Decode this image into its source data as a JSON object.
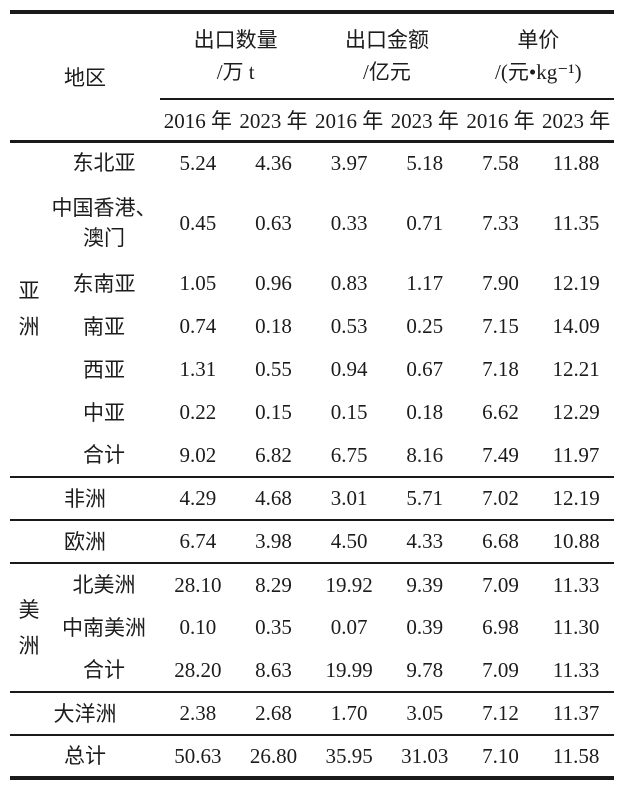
{
  "table": {
    "title_column": "地区",
    "column_groups": [
      {
        "title": "出口数量",
        "unit": "/万 t"
      },
      {
        "title": "出口金额",
        "unit": "/亿元"
      },
      {
        "title": "单价",
        "unit": "/(元•kg⁻¹)"
      }
    ],
    "year_headers": [
      "2016 年",
      "2023 年",
      "2016 年",
      "2023 年",
      "2016 年",
      "2023 年"
    ],
    "sections": [
      {
        "group": "亚洲",
        "group_chars": [
          "亚",
          "洲"
        ],
        "rows": [
          {
            "region_lines": [
              "东北亚"
            ],
            "values": [
              "5.24",
              "4.36",
              "3.97",
              "5.18",
              "7.58",
              "11.88"
            ]
          },
          {
            "region_lines": [
              "中国香港、",
              "澳门"
            ],
            "tall": true,
            "values": [
              "0.45",
              "0.63",
              "0.33",
              "0.71",
              "7.33",
              "11.35"
            ]
          },
          {
            "region_lines": [
              "东南亚"
            ],
            "values": [
              "1.05",
              "0.96",
              "0.83",
              "1.17",
              "7.90",
              "12.19"
            ]
          },
          {
            "region_lines": [
              "南亚"
            ],
            "values": [
              "0.74",
              "0.18",
              "0.53",
              "0.25",
              "7.15",
              "14.09"
            ]
          },
          {
            "region_lines": [
              "西亚"
            ],
            "values": [
              "1.31",
              "0.55",
              "0.94",
              "0.67",
              "7.18",
              "12.21"
            ]
          },
          {
            "region_lines": [
              "中亚"
            ],
            "values": [
              "0.22",
              "0.15",
              "0.15",
              "0.18",
              "6.62",
              "12.29"
            ]
          },
          {
            "region_lines": [
              "合计"
            ],
            "values": [
              "9.02",
              "6.82",
              "6.75",
              "8.16",
              "7.49",
              "11.97"
            ]
          }
        ]
      },
      {
        "group": null,
        "rows": [
          {
            "region_lines": [
              "非洲"
            ],
            "values": [
              "4.29",
              "4.68",
              "3.01",
              "5.71",
              "7.02",
              "12.19"
            ]
          }
        ]
      },
      {
        "group": null,
        "rows": [
          {
            "region_lines": [
              "欧洲"
            ],
            "values": [
              "6.74",
              "3.98",
              "4.50",
              "4.33",
              "6.68",
              "10.88"
            ]
          }
        ]
      },
      {
        "group": "美洲",
        "group_chars": [
          "美",
          "洲"
        ],
        "rows": [
          {
            "region_lines": [
              "北美洲"
            ],
            "values": [
              "28.10",
              "8.29",
              "19.92",
              "9.39",
              "7.09",
              "11.33"
            ]
          },
          {
            "region_lines": [
              "中南美洲"
            ],
            "values": [
              "0.10",
              "0.35",
              "0.07",
              "0.39",
              "6.98",
              "11.30"
            ]
          },
          {
            "region_lines": [
              "合计"
            ],
            "values": [
              "28.20",
              "8.63",
              "19.99",
              "9.78",
              "7.09",
              "11.33"
            ]
          }
        ]
      },
      {
        "group": null,
        "rows": [
          {
            "region_lines": [
              "大洋洲"
            ],
            "values": [
              "2.38",
              "2.68",
              "1.70",
              "3.05",
              "7.12",
              "11.37"
            ]
          }
        ]
      },
      {
        "group": null,
        "rows": [
          {
            "region_lines": [
              "总计"
            ],
            "values": [
              "50.63",
              "26.80",
              "35.95",
              "31.03",
              "7.10",
              "11.58"
            ]
          }
        ]
      }
    ]
  }
}
